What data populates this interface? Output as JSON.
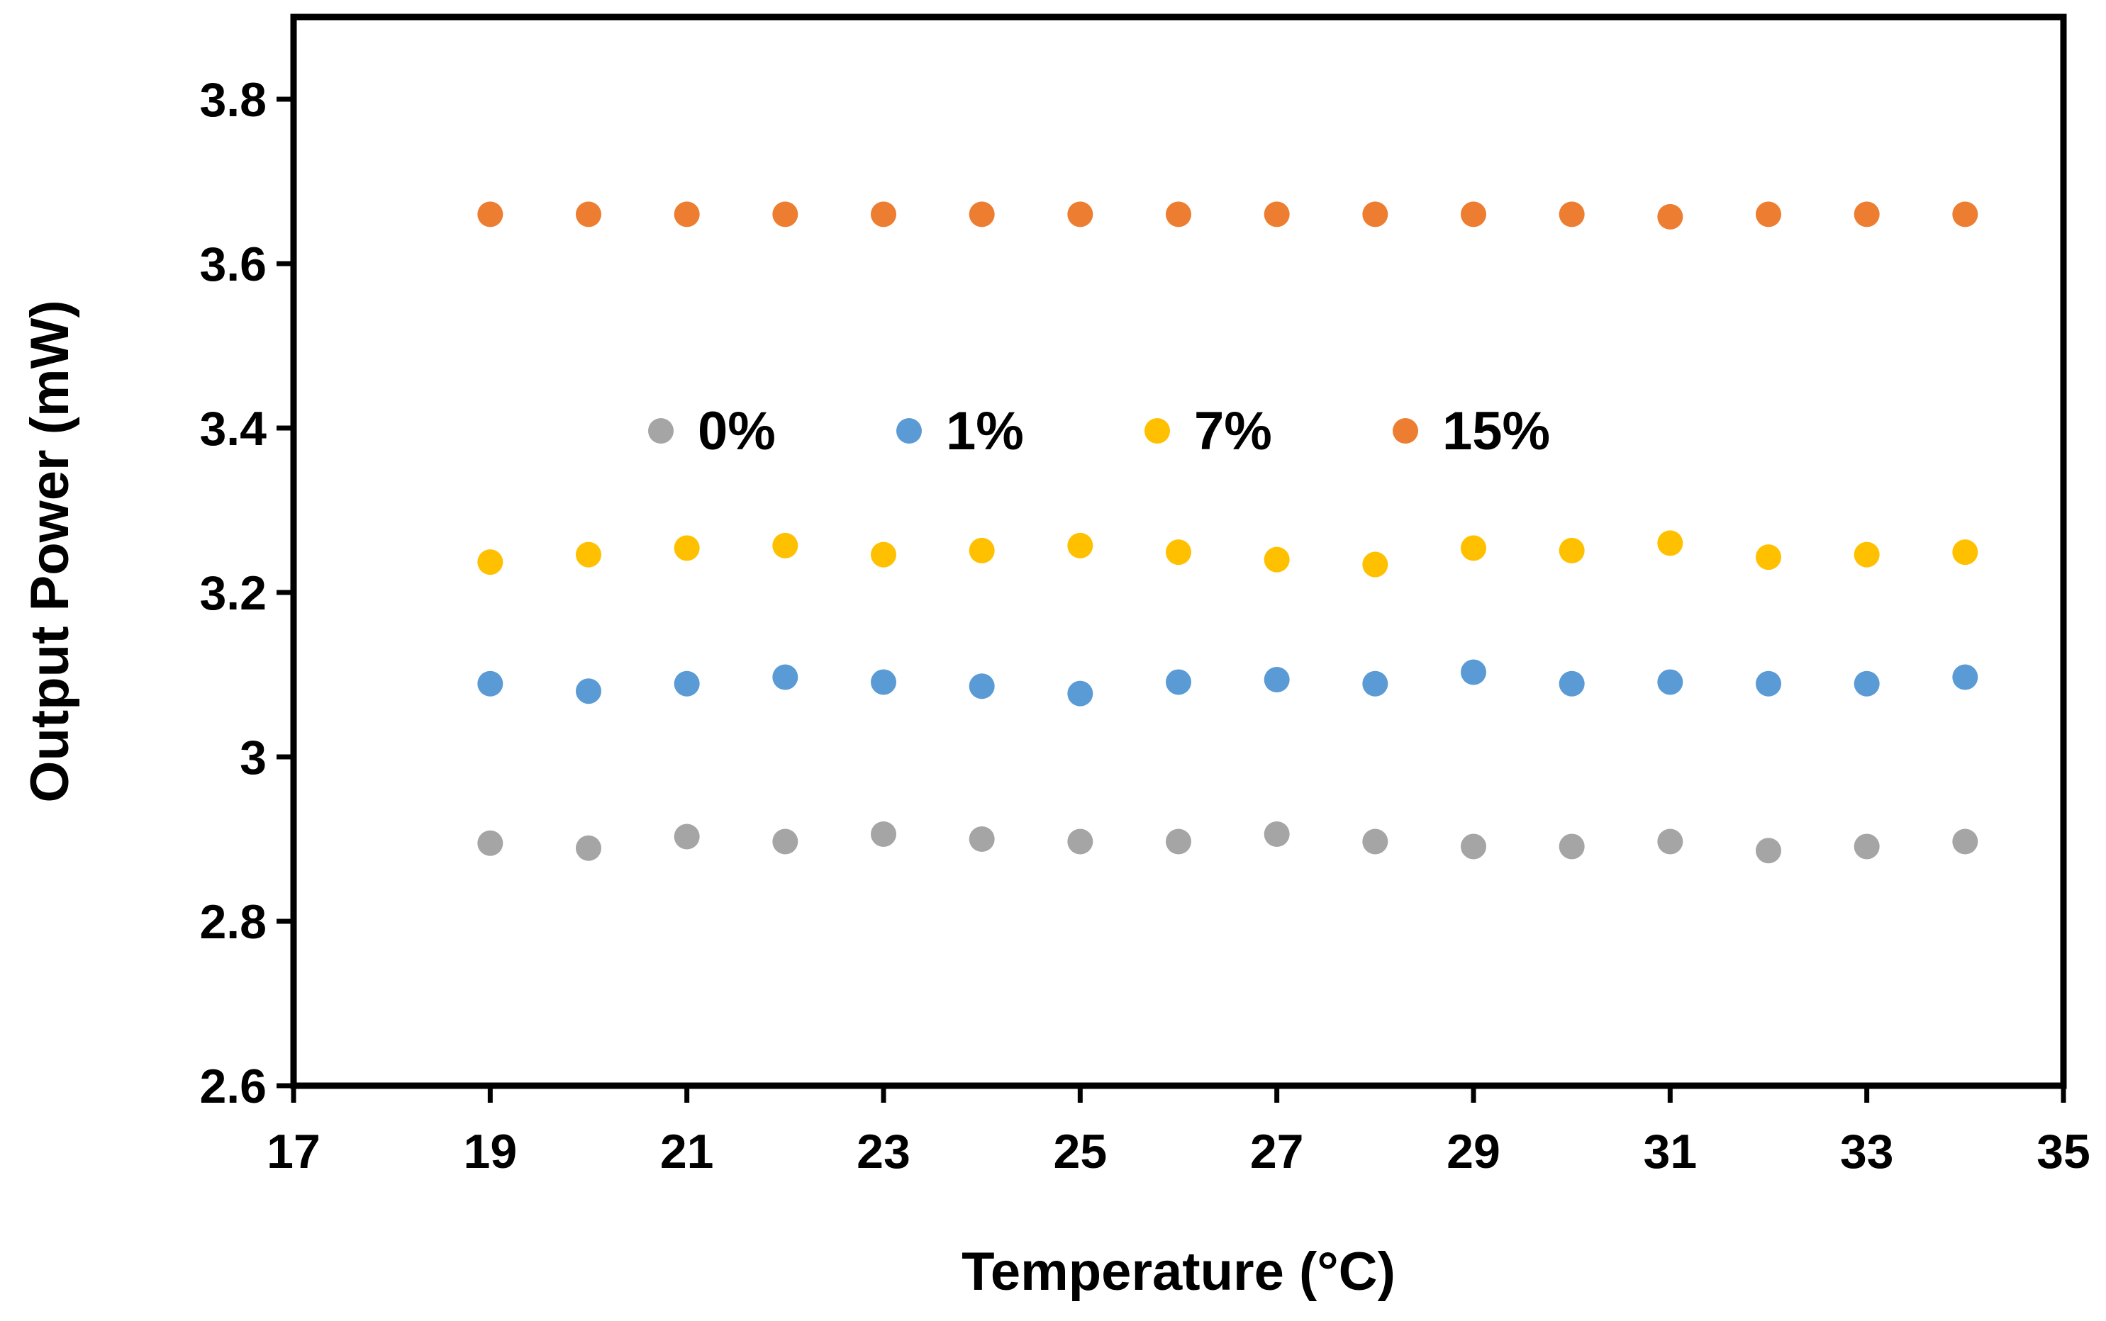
{
  "chart_data": {
    "type": "scatter",
    "title": "",
    "xlabel": "Temperature (°C)",
    "ylabel": "Output Power (mW)",
    "xlim": [
      17,
      35
    ],
    "ylim": [
      2.6,
      3.9
    ],
    "x_ticks": [
      17,
      19,
      21,
      23,
      25,
      27,
      29,
      31,
      33,
      35
    ],
    "y_ticks": [
      2.6,
      2.8,
      3,
      3.2,
      3.4,
      3.6,
      3.8
    ],
    "x_tick_labels": [
      "17",
      "19",
      "21",
      "23",
      "25",
      "27",
      "29",
      "31",
      "33",
      "35"
    ],
    "y_tick_labels": [
      "2.6",
      "2.8",
      "3",
      "3.2",
      "3.4",
      "3.6",
      "3.8"
    ],
    "grid": false,
    "legend_position": "center, inside plot above yellow series",
    "x": [
      19,
      20,
      21,
      22,
      23,
      24,
      25,
      26,
      27,
      28,
      29,
      30,
      31,
      32,
      33,
      34
    ],
    "series": [
      {
        "name": "0%",
        "color": "#a5a5a5",
        "values": [
          2.895,
          2.889,
          2.903,
          2.897,
          2.906,
          2.9,
          2.897,
          2.897,
          2.906,
          2.897,
          2.891,
          2.891,
          2.897,
          2.886,
          2.891,
          2.897
        ]
      },
      {
        "name": "1%",
        "color": "#5b9bd5",
        "values": [
          3.089,
          3.08,
          3.089,
          3.097,
          3.091,
          3.086,
          3.077,
          3.091,
          3.094,
          3.089,
          3.103,
          3.089,
          3.091,
          3.089,
          3.089,
          3.097
        ]
      },
      {
        "name": "7%",
        "color": "#ffc000",
        "values": [
          3.237,
          3.246,
          3.254,
          3.257,
          3.246,
          3.251,
          3.257,
          3.249,
          3.24,
          3.234,
          3.254,
          3.251,
          3.26,
          3.243,
          3.246,
          3.249
        ]
      },
      {
        "name": "15%",
        "color": "#ed7d31",
        "values": [
          3.66,
          3.66,
          3.66,
          3.66,
          3.66,
          3.66,
          3.66,
          3.66,
          3.66,
          3.66,
          3.66,
          3.66,
          3.657,
          3.66,
          3.66,
          3.66
        ]
      }
    ]
  }
}
